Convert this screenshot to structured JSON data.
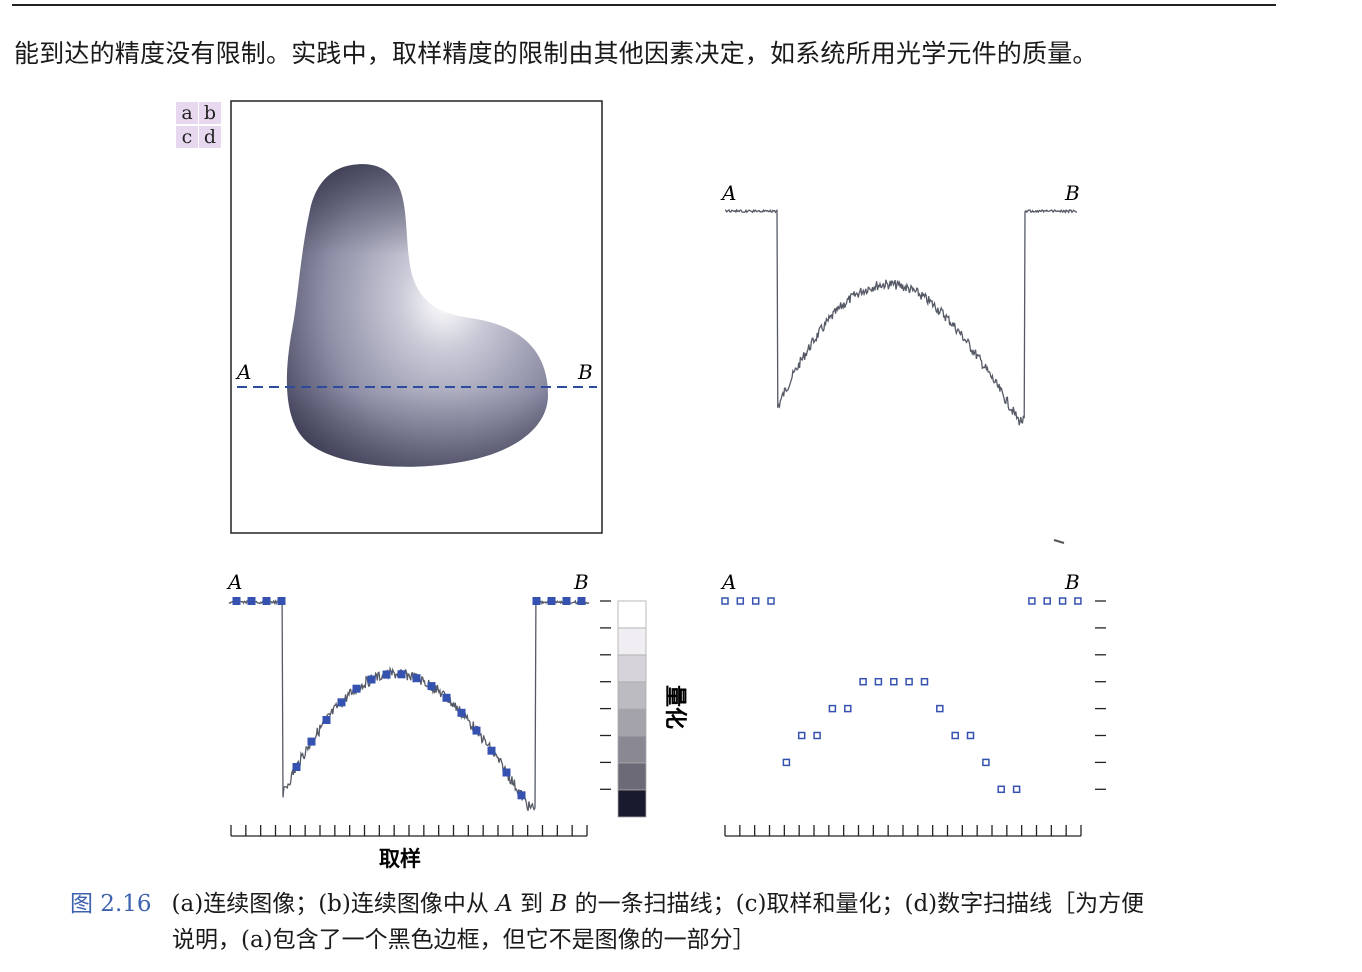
{
  "intro_text": "能到达的精度没有限制。实践中，取样精度的限制由其他因素决定，如系统所用光学元件的质量。",
  "panel_labels": [
    "a",
    "b",
    "c",
    "d"
  ],
  "point_labels": {
    "a": "A",
    "b": "B"
  },
  "axis_labels": {
    "sampling": "取样",
    "quantization": "量化"
  },
  "caption": {
    "figure_number": "图 2.16",
    "seg1": "(a)连续图像；(b)连续图像中从",
    "a": "A",
    "seg2": "到",
    "b": "B",
    "seg3": "的一条扫描线；(c)取样和量化；(d)数字扫描线［为方便",
    "line2": "说明，(a)包含了一个黑色边框，但它不是图像的一部分］"
  },
  "colors": {
    "scanline": "#2b4aa0",
    "digital_samples": "#3552b0",
    "profile": "#555a66",
    "caption_accent": "#3d62b0"
  },
  "chart_data": [
    {
      "type": "line",
      "panel": "b",
      "description_units": "normalized intensity (0 = dark, 1 = bright) along scan line A→B",
      "x": [
        0,
        0.15,
        0.151,
        0.25,
        0.35,
        0.45,
        0.5,
        0.55,
        0.65,
        0.75,
        0.85,
        0.849,
        0.85,
        1
      ],
      "values": [
        1.0,
        1.0,
        0.08,
        0.28,
        0.46,
        0.58,
        0.6,
        0.55,
        0.4,
        0.2,
        0.03,
        1.0,
        1.0,
        1.0
      ]
    },
    {
      "type": "scatter",
      "panel": "d",
      "quantization_levels": 8,
      "sample_levels": [
        7,
        7,
        7,
        7,
        1,
        2,
        2,
        3,
        3,
        4,
        4,
        4,
        4,
        4,
        3,
        2,
        2,
        1,
        0,
        0,
        7,
        7,
        7,
        7
      ]
    }
  ]
}
